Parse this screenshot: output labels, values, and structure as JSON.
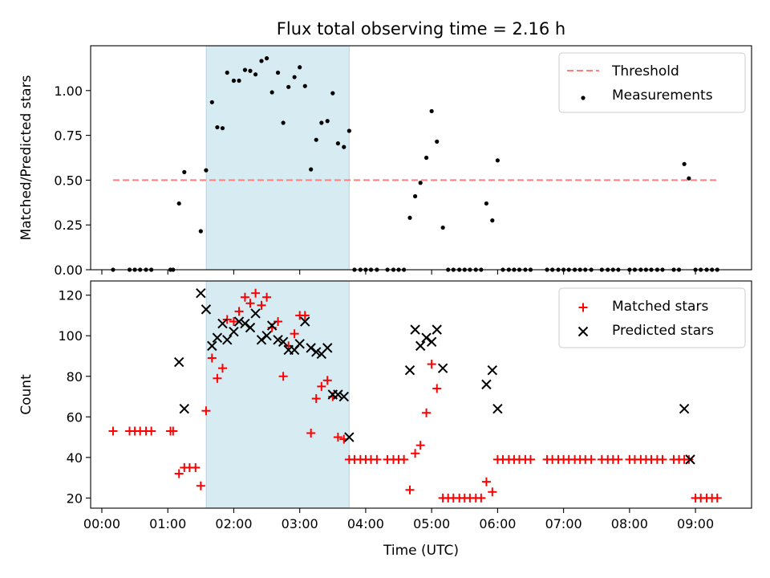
{
  "figure": {
    "title": "Flux total observing time = 2.16 h",
    "highlight": {
      "from": 1.583,
      "to": 3.75,
      "color": "#add8e6"
    }
  },
  "chart_data": [
    {
      "type": "scatter",
      "ylabel": "Matched/Predicted stars",
      "xlim": [
        -0.17,
        9.85
      ],
      "ylim": [
        0,
        1.25
      ],
      "yticks": [
        0.0,
        0.25,
        0.5,
        0.75,
        1.0
      ],
      "ytick_labels": [
        "0.00",
        "0.25",
        "0.50",
        "0.75",
        "1.00"
      ],
      "threshold": {
        "value": 0.5,
        "x_range": [
          0.17,
          9.33
        ],
        "color": "#ff7f7f"
      },
      "legend": {
        "position": "top-right",
        "entries": [
          {
            "label": "Threshold",
            "kind": "dashed-line"
          },
          {
            "label": "Measurements",
            "kind": "dot"
          }
        ]
      },
      "series": [
        {
          "kind": "dot",
          "color": "#000000",
          "points": [
            [
              0.17,
              0
            ],
            [
              0.42,
              0
            ],
            [
              0.5,
              0
            ],
            [
              0.58,
              0
            ],
            [
              0.67,
              0
            ],
            [
              0.75,
              0
            ],
            [
              1.04,
              0
            ],
            [
              1.08,
              0
            ],
            [
              1.17,
              0.37
            ],
            [
              1.25,
              0.545
            ],
            [
              1.5,
              0.215
            ],
            [
              1.58,
              0.555
            ],
            [
              1.67,
              0.935
            ],
            [
              1.75,
              0.795
            ],
            [
              1.83,
              0.79
            ],
            [
              1.9,
              1.1
            ],
            [
              2.0,
              1.055
            ],
            [
              2.08,
              1.055
            ],
            [
              2.17,
              1.115
            ],
            [
              2.25,
              1.11
            ],
            [
              2.33,
              1.09
            ],
            [
              2.42,
              1.165
            ],
            [
              2.5,
              1.18
            ],
            [
              2.58,
              0.99
            ],
            [
              2.67,
              1.1
            ],
            [
              2.75,
              0.82
            ],
            [
              2.83,
              1.02
            ],
            [
              2.92,
              1.075
            ],
            [
              3.0,
              1.13
            ],
            [
              3.08,
              1.025
            ],
            [
              3.17,
              0.56
            ],
            [
              3.25,
              0.725
            ],
            [
              3.33,
              0.82
            ],
            [
              3.42,
              0.83
            ],
            [
              3.5,
              0.985
            ],
            [
              3.58,
              0.705
            ],
            [
              3.67,
              0.685
            ],
            [
              3.75,
              0.775
            ],
            [
              3.83,
              0
            ],
            [
              3.92,
              0
            ],
            [
              4.0,
              0
            ],
            [
              4.08,
              0
            ],
            [
              4.17,
              0
            ],
            [
              4.33,
              0
            ],
            [
              4.42,
              0
            ],
            [
              4.5,
              0
            ],
            [
              4.58,
              0
            ],
            [
              4.67,
              0.29
            ],
            [
              4.75,
              0.41
            ],
            [
              4.83,
              0.485
            ],
            [
              4.92,
              0.625
            ],
            [
              5.0,
              0.885
            ],
            [
              5.08,
              0.715
            ],
            [
              5.17,
              0.235
            ],
            [
              5.25,
              0
            ],
            [
              5.33,
              0
            ],
            [
              5.42,
              0
            ],
            [
              5.5,
              0
            ],
            [
              5.58,
              0
            ],
            [
              5.67,
              0
            ],
            [
              5.75,
              0
            ],
            [
              5.83,
              0.37
            ],
            [
              5.92,
              0.275
            ],
            [
              6.0,
              0.61
            ],
            [
              6.08,
              0
            ],
            [
              6.17,
              0
            ],
            [
              6.25,
              0
            ],
            [
              6.33,
              0
            ],
            [
              6.42,
              0
            ],
            [
              6.5,
              0
            ],
            [
              6.75,
              0
            ],
            [
              6.83,
              0
            ],
            [
              6.92,
              0
            ],
            [
              7.0,
              0
            ],
            [
              7.08,
              0
            ],
            [
              7.17,
              0
            ],
            [
              7.25,
              0
            ],
            [
              7.33,
              0
            ],
            [
              7.42,
              0
            ],
            [
              7.58,
              0
            ],
            [
              7.67,
              0
            ],
            [
              7.75,
              0
            ],
            [
              7.83,
              0
            ],
            [
              8.0,
              0
            ],
            [
              8.08,
              0
            ],
            [
              8.17,
              0
            ],
            [
              8.25,
              0
            ],
            [
              8.33,
              0
            ],
            [
              8.42,
              0
            ],
            [
              8.5,
              0
            ],
            [
              8.67,
              0
            ],
            [
              8.75,
              0
            ],
            [
              8.83,
              0.59
            ],
            [
              8.9,
              0.51
            ],
            [
              9.0,
              0
            ],
            [
              9.08,
              0
            ],
            [
              9.17,
              0
            ],
            [
              9.25,
              0
            ],
            [
              9.33,
              0
            ]
          ]
        }
      ]
    },
    {
      "type": "scatter",
      "xlabel": "Time (UTC)",
      "ylabel": "Count",
      "xlim": [
        -0.17,
        9.85
      ],
      "ylim": [
        15,
        127
      ],
      "xticks": [
        0,
        1,
        2,
        3,
        4,
        5,
        6,
        7,
        8,
        9
      ],
      "xtick_labels": [
        "00:00",
        "01:00",
        "02:00",
        "03:00",
        "04:00",
        "05:00",
        "06:00",
        "07:00",
        "08:00",
        "09:00"
      ],
      "yticks": [
        20,
        40,
        60,
        80,
        100,
        120
      ],
      "ytick_labels": [
        "20",
        "40",
        "60",
        "80",
        "100",
        "120"
      ],
      "legend": {
        "position": "top-right",
        "entries": [
          {
            "label": "Matched stars",
            "kind": "plus"
          },
          {
            "label": "Predicted stars",
            "kind": "cross"
          }
        ]
      },
      "series": [
        {
          "kind": "plus",
          "color": "#ff0000",
          "points": [
            [
              0.17,
              53
            ],
            [
              0.42,
              53
            ],
            [
              0.5,
              53
            ],
            [
              0.58,
              53
            ],
            [
              0.67,
              53
            ],
            [
              0.75,
              53
            ],
            [
              1.04,
              53
            ],
            [
              1.08,
              53
            ],
            [
              1.17,
              32
            ],
            [
              1.25,
              35
            ],
            [
              1.33,
              35
            ],
            [
              1.42,
              35
            ],
            [
              1.5,
              26
            ],
            [
              1.58,
              63
            ],
            [
              1.67,
              89
            ],
            [
              1.75,
              79
            ],
            [
              1.83,
              84
            ],
            [
              1.9,
              108
            ],
            [
              2.0,
              107
            ],
            [
              2.08,
              112
            ],
            [
              2.17,
              119
            ],
            [
              2.25,
              116
            ],
            [
              2.33,
              121
            ],
            [
              2.42,
              115
            ],
            [
              2.5,
              119
            ],
            [
              2.58,
              104
            ],
            [
              2.67,
              107
            ],
            [
              2.75,
              80
            ],
            [
              2.83,
              95
            ],
            [
              2.92,
              101
            ],
            [
              3.0,
              110
            ],
            [
              3.08,
              110
            ],
            [
              3.17,
              52
            ],
            [
              3.25,
              69
            ],
            [
              3.33,
              75
            ],
            [
              3.42,
              78
            ],
            [
              3.5,
              70
            ],
            [
              3.58,
              50
            ],
            [
              3.67,
              49
            ],
            [
              3.75,
              39
            ],
            [
              3.83,
              39
            ],
            [
              3.92,
              39
            ],
            [
              4.0,
              39
            ],
            [
              4.08,
              39
            ],
            [
              4.17,
              39
            ],
            [
              4.33,
              39
            ],
            [
              4.42,
              39
            ],
            [
              4.5,
              39
            ],
            [
              4.58,
              39
            ],
            [
              4.67,
              24
            ],
            [
              4.75,
              42
            ],
            [
              4.83,
              46
            ],
            [
              4.92,
              62
            ],
            [
              5.0,
              86
            ],
            [
              5.08,
              74
            ],
            [
              5.17,
              20
            ],
            [
              5.25,
              20
            ],
            [
              5.33,
              20
            ],
            [
              5.42,
              20
            ],
            [
              5.5,
              20
            ],
            [
              5.58,
              20
            ],
            [
              5.67,
              20
            ],
            [
              5.75,
              20
            ],
            [
              5.83,
              28
            ],
            [
              5.92,
              23
            ],
            [
              6.0,
              39
            ],
            [
              6.08,
              39
            ],
            [
              6.17,
              39
            ],
            [
              6.25,
              39
            ],
            [
              6.33,
              39
            ],
            [
              6.42,
              39
            ],
            [
              6.5,
              39
            ],
            [
              6.75,
              39
            ],
            [
              6.83,
              39
            ],
            [
              6.92,
              39
            ],
            [
              7.0,
              39
            ],
            [
              7.08,
              39
            ],
            [
              7.17,
              39
            ],
            [
              7.25,
              39
            ],
            [
              7.33,
              39
            ],
            [
              7.42,
              39
            ],
            [
              7.58,
              39
            ],
            [
              7.67,
              39
            ],
            [
              7.75,
              39
            ],
            [
              7.83,
              39
            ],
            [
              8.0,
              39
            ],
            [
              8.08,
              39
            ],
            [
              8.17,
              39
            ],
            [
              8.25,
              39
            ],
            [
              8.33,
              39
            ],
            [
              8.42,
              39
            ],
            [
              8.5,
              39
            ],
            [
              8.67,
              39
            ],
            [
              8.75,
              39
            ],
            [
              8.83,
              39
            ],
            [
              8.9,
              39
            ],
            [
              9.0,
              20
            ],
            [
              9.08,
              20
            ],
            [
              9.17,
              20
            ],
            [
              9.25,
              20
            ],
            [
              9.33,
              20
            ]
          ]
        },
        {
          "kind": "cross",
          "color": "#000000",
          "points": [
            [
              1.17,
              87
            ],
            [
              1.25,
              64
            ],
            [
              1.5,
              121
            ],
            [
              1.58,
              113
            ],
            [
              1.67,
              95
            ],
            [
              1.75,
              99
            ],
            [
              1.83,
              106
            ],
            [
              1.9,
              98
            ],
            [
              2.0,
              102
            ],
            [
              2.08,
              107
            ],
            [
              2.17,
              106
            ],
            [
              2.25,
              104
            ],
            [
              2.33,
              111
            ],
            [
              2.42,
              98
            ],
            [
              2.5,
              100
            ],
            [
              2.58,
              105
            ],
            [
              2.67,
              98
            ],
            [
              2.75,
              97
            ],
            [
              2.83,
              93
            ],
            [
              2.92,
              93
            ],
            [
              3.0,
              96
            ],
            [
              3.08,
              107
            ],
            [
              3.17,
              94
            ],
            [
              3.25,
              92
            ],
            [
              3.33,
              91
            ],
            [
              3.42,
              94
            ],
            [
              3.5,
              71
            ],
            [
              3.58,
              71
            ],
            [
              3.67,
              70
            ],
            [
              3.75,
              50
            ],
            [
              4.67,
              83
            ],
            [
              4.75,
              103
            ],
            [
              4.83,
              95
            ],
            [
              4.92,
              99
            ],
            [
              5.0,
              97
            ],
            [
              5.08,
              103
            ],
            [
              5.17,
              84
            ],
            [
              5.83,
              76
            ],
            [
              5.92,
              83
            ],
            [
              6.0,
              64
            ],
            [
              8.83,
              64
            ],
            [
              8.92,
              39
            ]
          ]
        }
      ]
    }
  ]
}
